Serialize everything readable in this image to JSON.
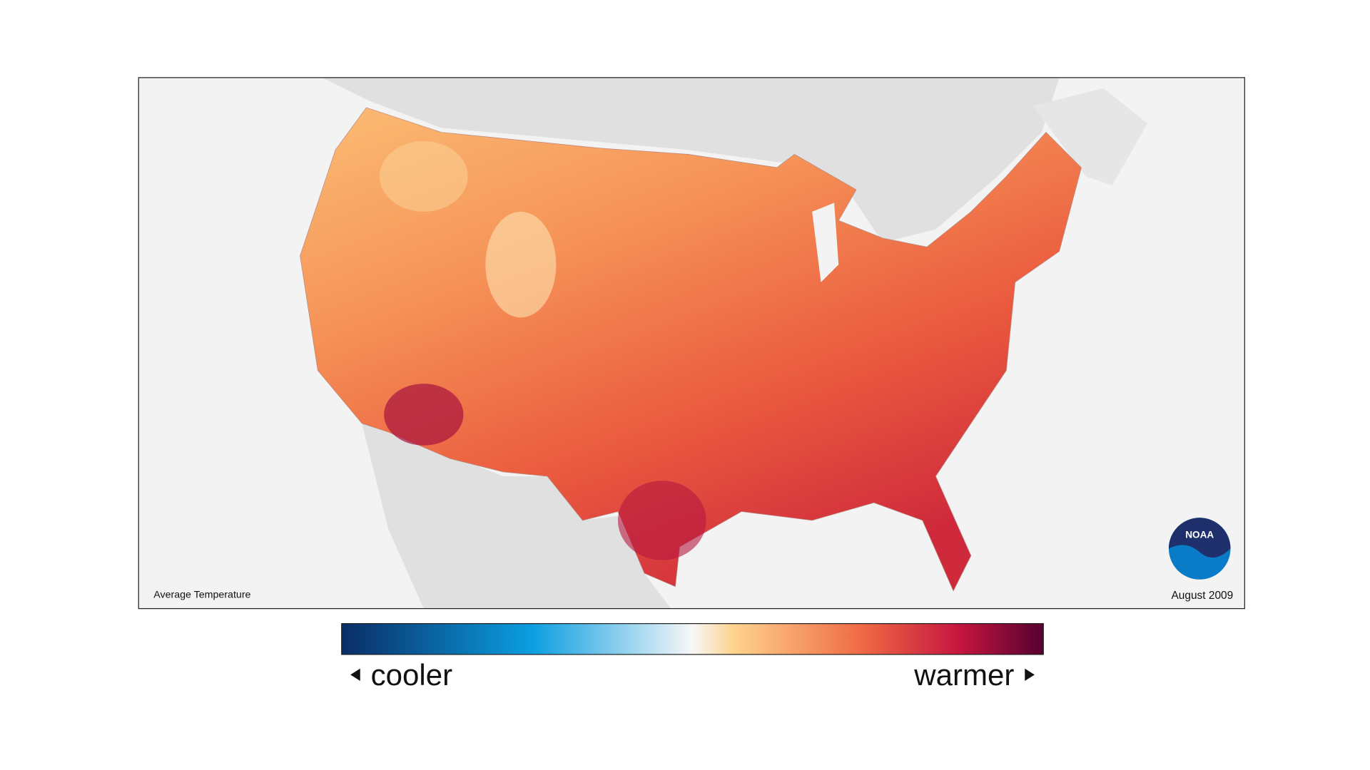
{
  "map": {
    "caption": "Average Temperature",
    "date": "August 2009",
    "logo": "NOAA"
  },
  "legend": {
    "low": "cooler",
    "high": "warmer"
  }
}
